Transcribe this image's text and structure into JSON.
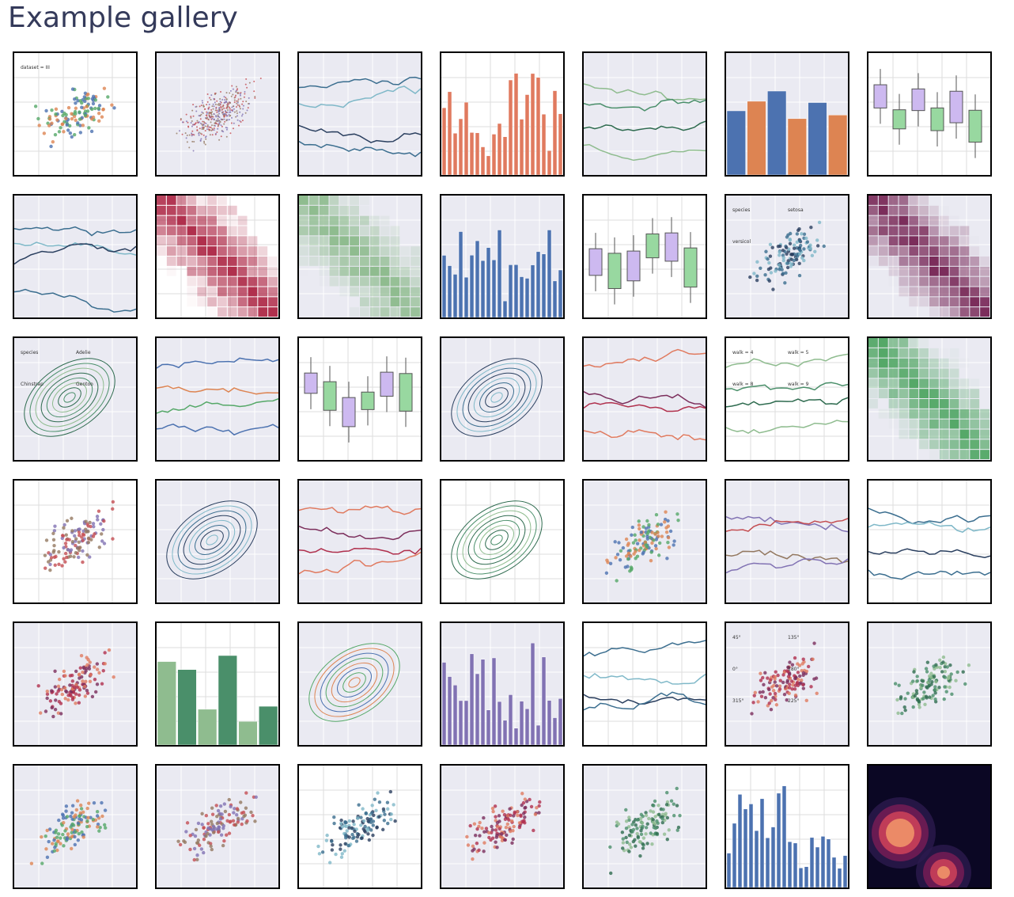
{
  "page": {
    "title": "Example gallery",
    "thumbnail_texts": [
      [
        "dataset = III"
      ],
      [],
      [],
      [],
      [],
      [],
      [],
      [],
      [],
      [],
      [],
      [],
      [
        "species",
        "setosa",
        "versicol"
      ],
      [],
      [
        "species",
        "Adelie",
        "Chinstrap",
        "Gentoo"
      ],
      [],
      [],
      [],
      [],
      [
        "walk = 4",
        "walk = 5",
        "walk = 8",
        "walk = 9"
      ],
      [],
      [],
      [],
      [],
      [],
      [],
      [],
      [],
      [],
      [],
      [],
      [],
      [],
      [
        "45°",
        "135°",
        "0°",
        "180°",
        "315°",
        "225°"
      ],
      [],
      [],
      [],
      [],
      [],
      [],
      [],
      []
    ]
  }
}
